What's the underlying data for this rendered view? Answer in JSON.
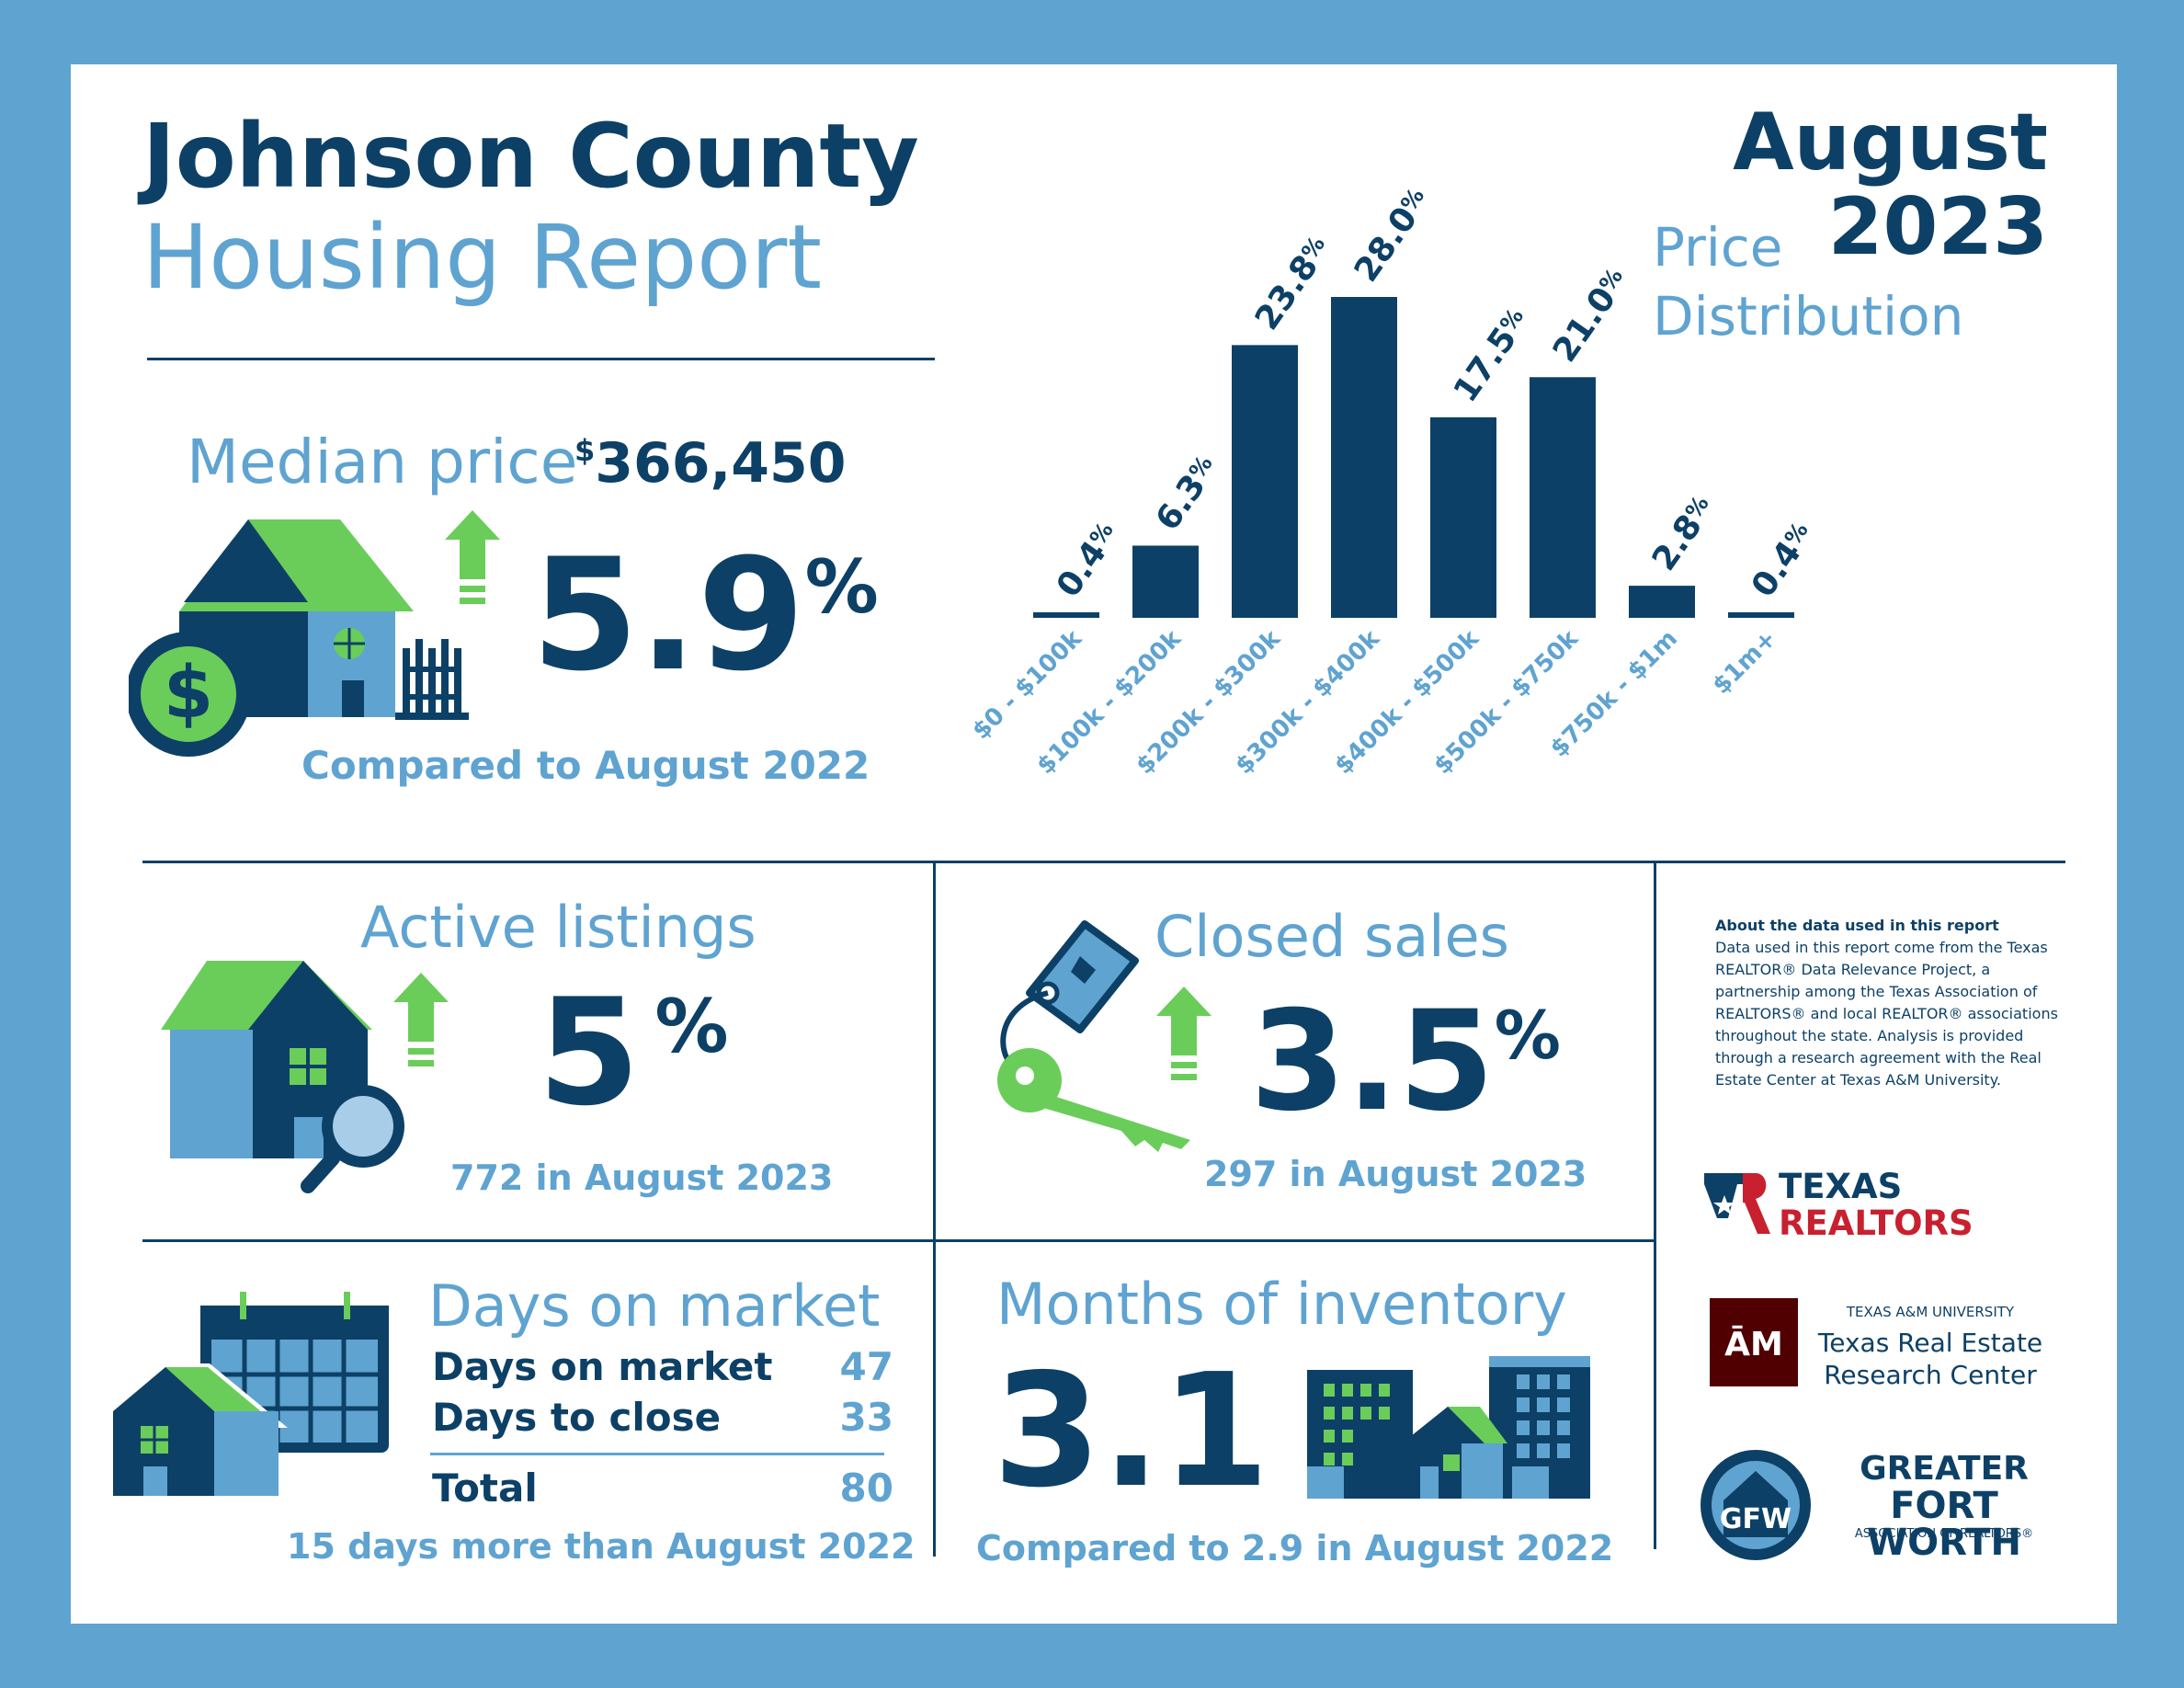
{
  "header": {
    "title_line1": "Johnson County",
    "title_line2": "Housing Report",
    "month": "August",
    "year": "2023"
  },
  "median": {
    "label": "Median price",
    "currency": "$",
    "amount": "366,450",
    "change": "5.9",
    "pct": "%",
    "comparison": "Compared to August 2022"
  },
  "chart_title_line1": "Price",
  "chart_title_line2": "Distribution",
  "chart_data": {
    "type": "bar",
    "title": "Price Distribution",
    "categories": [
      "$0 - $100k",
      "$100k - $200k",
      "$200k - $300k",
      "$300k - $400k",
      "$400k - $500k",
      "$500k - $750k",
      "$750k - $1m",
      "$1m+"
    ],
    "values": [
      0.4,
      6.3,
      23.8,
      28.0,
      17.5,
      21.0,
      2.8,
      0.4
    ],
    "value_labels": [
      "0.4",
      "6.3",
      "23.8",
      "28.0",
      "17.5",
      "21.0",
      "2.8",
      "0.4"
    ],
    "value_suffix": "%",
    "ylim": [
      0,
      28
    ],
    "grid": false,
    "bar_color": "#0d4066",
    "label_color": "#5fa3d1"
  },
  "active": {
    "label": "Active listings",
    "change": "5",
    "pct": "%",
    "detail": "772 in August 2023"
  },
  "closed": {
    "label": "Closed sales",
    "change": "3.5",
    "pct": "%",
    "detail": "297 in August 2023"
  },
  "dom": {
    "label": "Days on market",
    "rows": [
      {
        "label": "Days on market",
        "value": "47"
      },
      {
        "label": "Days to close",
        "value": "33"
      }
    ],
    "total_label": "Total",
    "total_value": "80",
    "comparison": "15 days more than August 2022"
  },
  "inventory": {
    "label": "Months of inventory",
    "value": "3.1",
    "comparison": "Compared to 2.9 in August 2022"
  },
  "about": {
    "heading": "About the data used in this report",
    "body": "Data used in this report come from the Texas REALTOR® Data Relevance Project, a partnership among the Texas Association of REALTORS® and local REALTOR® associations throughout the state. Analysis is provided through a research agreement with the Real Estate Center at Texas A&M University."
  },
  "logos": {
    "texas_realtors_line1": "TEXAS",
    "texas_realtors_line2": "REALTORS",
    "tamu_small": "TEXAS A&M UNIVERSITY",
    "tamu_line1": "Texas Real Estate",
    "tamu_line2": "Research Center",
    "gfw_line1": "GREATER",
    "gfw_line2": "FORT WORTH",
    "gfw_line3": "ASSOCIATION OF REALTORS®"
  },
  "colors": {
    "navy": "#0d4066",
    "light_blue": "#5fa3d1",
    "green": "#6acd5a",
    "maroon": "#500000",
    "red": "#c8202f"
  }
}
